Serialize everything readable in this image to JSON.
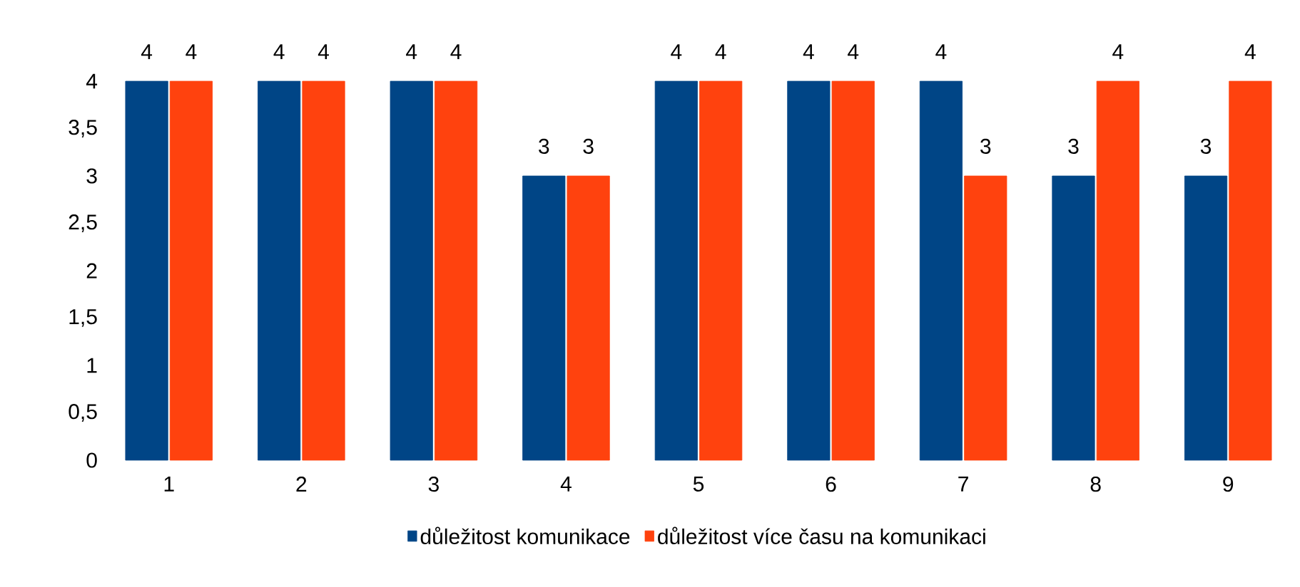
{
  "chart_data": {
    "type": "bar",
    "categories": [
      "1",
      "2",
      "3",
      "4",
      "5",
      "6",
      "7",
      "8",
      "9"
    ],
    "series": [
      {
        "name": "důležitost komunikace",
        "color": "#004586",
        "values": [
          4,
          4,
          4,
          3,
          4,
          4,
          4,
          3,
          3
        ]
      },
      {
        "name": "důležitost více času na komunikaci",
        "color": "#ff420e",
        "values": [
          4,
          4,
          4,
          3,
          4,
          4,
          3,
          4,
          4
        ]
      }
    ],
    "ylim": [
      0,
      4
    ],
    "yticks": [
      0,
      {
        "value": 0.5,
        "label": "0,5"
      },
      1,
      {
        "value": 1.5,
        "label": "1,5"
      },
      2,
      {
        "value": 2.5,
        "label": "2,5"
      },
      3,
      {
        "value": 3.5,
        "label": "3,5"
      },
      4
    ],
    "data_labels": true,
    "legend": "bottom",
    "grid": false
  }
}
